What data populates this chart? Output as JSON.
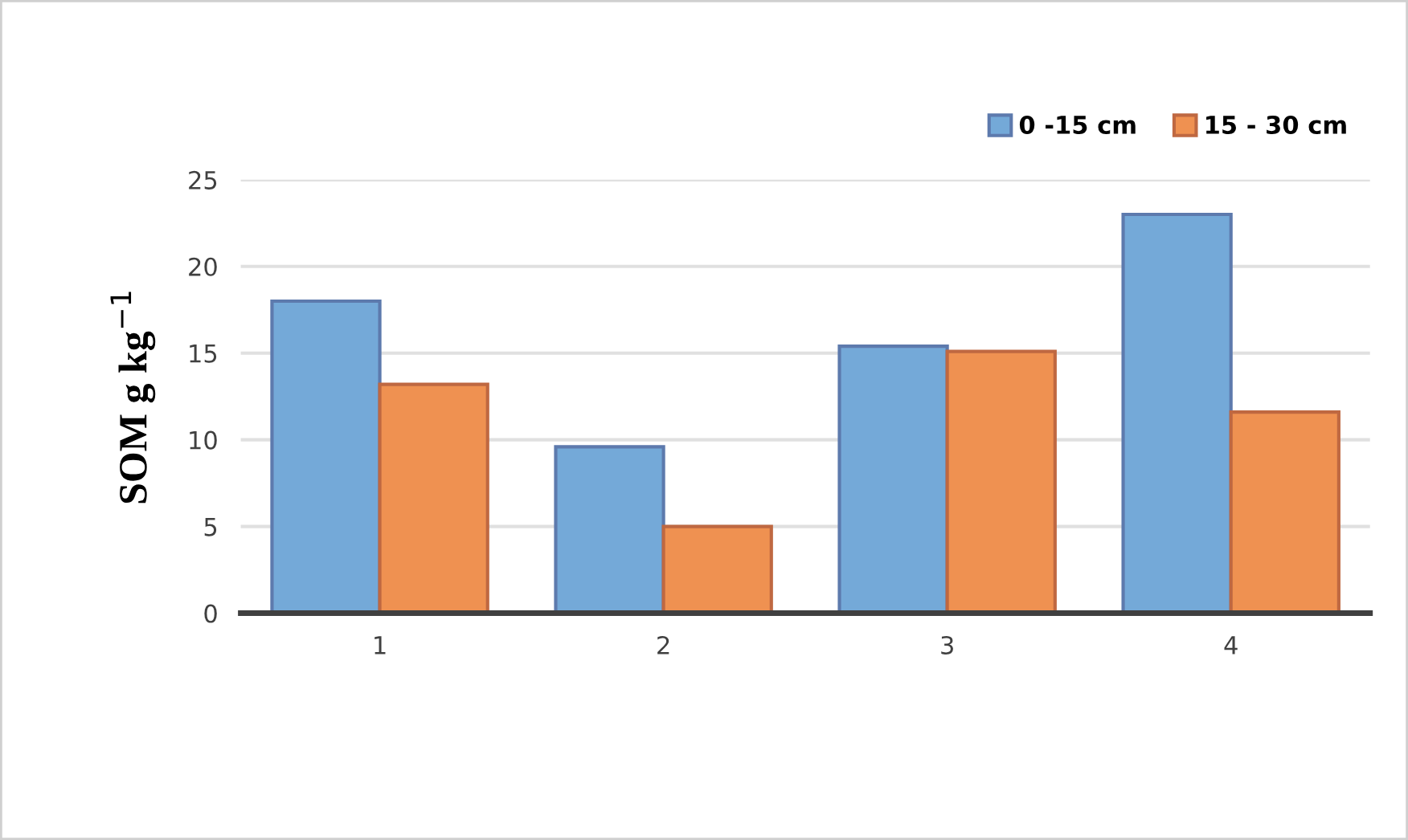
{
  "chart_data": {
    "type": "bar",
    "ylabel": "SOM g kg$^{−1}$",
    "categories": [
      "1",
      "2",
      "3",
      "4"
    ],
    "series": [
      {
        "name": "0 -15 cm",
        "color": "#74a9d8",
        "values": [
          18.0,
          9.6,
          15.4,
          23.0
        ]
      },
      {
        "name": "15 - 30 cm",
        "color": "#ef9151",
        "values": [
          13.2,
          5.0,
          15.1,
          11.6
        ]
      }
    ],
    "ylim": [
      0,
      25
    ],
    "yticks": [
      0,
      5,
      10,
      15,
      20,
      25
    ],
    "grid": "y",
    "legend": "top right"
  }
}
